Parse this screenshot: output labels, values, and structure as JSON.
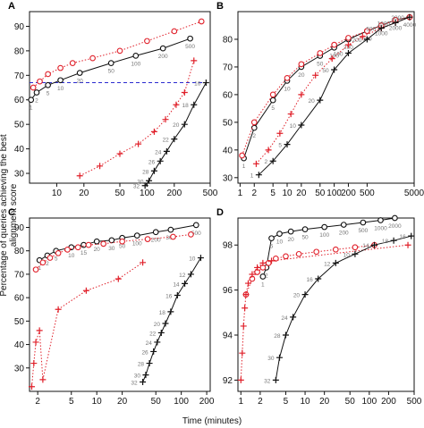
{
  "figure": {
    "ylabel": "Percentage of queries achieving the best alignment score",
    "xlabel": "Time (minutes)"
  },
  "chart_data": [
    {
      "panel": "A",
      "type": "scatter",
      "xscale": "log",
      "xlim": [
        5,
        500
      ],
      "ylim": [
        26,
        96
      ],
      "xticks": [
        10,
        20,
        50,
        100,
        200,
        500
      ],
      "yticks": [
        30,
        40,
        50,
        60,
        70,
        80,
        90
      ],
      "hline": 67,
      "series": [
        {
          "marker": "circle",
          "color": "#111111",
          "line": "solid",
          "style": "black",
          "x": [
            5.2,
            6,
            8,
            11,
            18,
            40,
            75,
            150,
            300
          ],
          "y": [
            60,
            63,
            66,
            68,
            71,
            75,
            78,
            81,
            85
          ],
          "labels": [
            "1",
            "2",
            "5",
            "10",
            "20",
            "50",
            "100",
            "200",
            "500"
          ]
        },
        {
          "marker": "circle",
          "color": "#e0202a",
          "line": "dotted",
          "style": "red",
          "x": [
            5.5,
            6.5,
            8,
            11,
            15,
            25,
            50,
            100,
            200,
            400
          ],
          "y": [
            65,
            67.5,
            70.5,
            73,
            75,
            77,
            80,
            84,
            88,
            92
          ],
          "labels": []
        },
        {
          "marker": "plus",
          "color": "#e0202a",
          "line": "dotted",
          "style": "red",
          "x": [
            18,
            30,
            50,
            80,
            120,
            160,
            210,
            260,
            330
          ],
          "y": [
            29,
            33,
            38,
            42,
            47,
            52,
            58,
            63,
            76
          ],
          "labels": []
        },
        {
          "marker": "plus",
          "color": "#111111",
          "line": "solid",
          "style": "black",
          "x": [
            95,
            105,
            120,
            140,
            165,
            200,
            260,
            330,
            450
          ],
          "y": [
            25,
            27,
            31,
            35,
            39,
            44,
            50,
            58,
            67
          ],
          "labels": [
            "32",
            "30",
            "28",
            "26",
            "24",
            "22",
            "20",
            "18",
            "16"
          ]
        }
      ]
    },
    {
      "panel": "B",
      "type": "scatter",
      "xscale": "log",
      "xlim": [
        0.9,
        5000
      ],
      "ylim": [
        28,
        90
      ],
      "xticks": [
        1,
        2,
        5,
        10,
        20,
        50,
        100,
        200,
        500,
        5000
      ],
      "yticks": [
        30,
        40,
        50,
        60,
        70,
        80
      ],
      "series": [
        {
          "marker": "circle",
          "color": "#111111",
          "line": "solid",
          "style": "black",
          "x": [
            1.2,
            2,
            5,
            10,
            20,
            50,
            100,
            200,
            500,
            1000,
            2000,
            4000
          ],
          "y": [
            37,
            48,
            58,
            65,
            70,
            74,
            77,
            80,
            83,
            85,
            87,
            88
          ],
          "labels": [
            "1",
            "2",
            "5",
            "10",
            "20",
            "50",
            "100",
            "200",
            "500",
            "1000",
            "2000",
            "4000"
          ]
        },
        {
          "marker": "circle",
          "color": "#e0202a",
          "line": "dotted",
          "style": "red",
          "x": [
            1.1,
            2,
            5,
            10,
            20,
            50,
            100,
            200,
            500,
            1000,
            2000,
            4000
          ],
          "y": [
            38,
            50,
            60,
            66,
            71,
            75,
            78,
            80.5,
            83,
            85,
            87,
            88
          ],
          "labels": []
        },
        {
          "marker": "plus",
          "color": "#e0202a",
          "line": "dotted",
          "style": "red",
          "x": [
            2.2,
            4,
            7,
            12,
            20,
            40,
            90,
            200,
            400,
            1000,
            2000,
            4000
          ],
          "y": [
            35,
            40,
            46,
            53,
            60,
            67,
            73,
            78,
            81,
            84,
            86,
            88
          ],
          "labels": []
        },
        {
          "marker": "plus",
          "color": "#111111",
          "line": "solid",
          "style": "black",
          "x": [
            2.5,
            5,
            10,
            20,
            50,
            100,
            200,
            500,
            1000,
            2000,
            4000
          ],
          "y": [
            31,
            36,
            42,
            49,
            58,
            69,
            75,
            80,
            84,
            86,
            88
          ],
          "labels": [
            "1",
            "2",
            "5",
            "10",
            "20",
            "50",
            "100",
            "200",
            "500",
            "1000",
            "2000"
          ]
        }
      ]
    },
    {
      "panel": "C",
      "type": "scatter",
      "xscale": "log",
      "xlim": [
        1.6,
        220
      ],
      "ylim": [
        20,
        94
      ],
      "xticks": [
        2,
        5,
        10,
        20,
        50,
        100,
        200
      ],
      "yticks": [
        30,
        40,
        50,
        60,
        70,
        80,
        90
      ],
      "series": [
        {
          "marker": "circle",
          "color": "#111111",
          "line": "solid",
          "style": "black",
          "x": [
            2.1,
            2.6,
            3.3,
            5,
            7,
            10,
            15,
            20,
            30,
            50,
            75,
            150
          ],
          "y": [
            76,
            78,
            80,
            81.5,
            82.5,
            84,
            84.5,
            85.5,
            86.5,
            88,
            89,
            91
          ],
          "labels": [
            "1",
            "2",
            "5",
            "10",
            "15",
            "20",
            "30",
            "50",
            "100",
            "200",
            "300",
            "500"
          ]
        },
        {
          "marker": "circle",
          "color": "#e0202a",
          "line": "dotted",
          "style": "red",
          "x": [
            1.9,
            2.3,
            2.8,
            3.5,
            4.5,
            6,
            8,
            12,
            20,
            40,
            80,
            130
          ],
          "y": [
            72,
            75,
            77,
            79,
            80.5,
            81.5,
            82.5,
            83,
            84,
            85,
            86,
            87
          ],
          "labels": []
        },
        {
          "marker": "plus",
          "color": "#e0202a",
          "line": "dotted",
          "style": "red",
          "x": [
            1.7,
            1.8,
            1.9,
            2.1,
            2.3,
            3.5,
            7.5,
            18,
            35
          ],
          "y": [
            22,
            32,
            41,
            46,
            25,
            55,
            63,
            68,
            75
          ],
          "labels": []
        },
        {
          "marker": "plus",
          "color": "#111111",
          "line": "solid",
          "style": "black",
          "x": [
            35,
            38,
            42,
            47,
            52,
            58,
            65,
            75,
            90,
            110,
            130,
            170
          ],
          "y": [
            24,
            27,
            32,
            37,
            41,
            45,
            49,
            54,
            61,
            66,
            70,
            77
          ],
          "labels": [
            "32",
            "30",
            "28",
            "26",
            "24",
            "22",
            "20",
            "18",
            "16",
            "14",
            "12",
            "10"
          ]
        }
      ]
    },
    {
      "panel": "D",
      "type": "scatter",
      "xscale": "log",
      "xlim": [
        0.9,
        500
      ],
      "ylim": [
        91.5,
        99.2
      ],
      "xticks": [
        1,
        2,
        5,
        10,
        20,
        50,
        100,
        200,
        500
      ],
      "yticks": [
        92,
        94,
        96,
        98
      ],
      "series": [
        {
          "marker": "circle",
          "color": "#111111",
          "line": "solid",
          "style": "black",
          "x": [
            2.2,
            2.5,
            3,
            4,
            6,
            10,
            20,
            40,
            80,
            150,
            250
          ],
          "y": [
            96.6,
            97,
            98.3,
            98.5,
            98.6,
            98.7,
            98.8,
            98.9,
            99.0,
            99.1,
            99.2
          ],
          "labels": [
            "1",
            "2",
            "5",
            "10",
            "20",
            "50",
            "100",
            "200",
            "500",
            "1000",
            "2000"
          ]
        },
        {
          "marker": "circle",
          "color": "#e0202a",
          "line": "dotted",
          "style": "red",
          "x": [
            1.2,
            1.5,
            1.8,
            2.2,
            2.7,
            3.5,
            5,
            8,
            15,
            30,
            60,
            120
          ],
          "y": [
            95.8,
            96.5,
            96.8,
            97.0,
            97.2,
            97.4,
            97.5,
            97.6,
            97.7,
            97.8,
            97.9,
            98.0
          ],
          "labels": []
        },
        {
          "marker": "plus",
          "color": "#e0202a",
          "line": "dotted",
          "style": "red",
          "x": [
            1.0,
            1.05,
            1.1,
            1.15,
            1.2,
            1.3,
            1.5,
            1.8,
            2.2,
            3,
            400
          ],
          "y": [
            92,
            93.2,
            94.4,
            95.2,
            95.8,
            96.3,
            96.7,
            97.0,
            97.2,
            97.3,
            98.0
          ],
          "labels": []
        },
        {
          "marker": "plus",
          "color": "#111111",
          "line": "solid",
          "style": "black",
          "x": [
            3.5,
            4,
            5,
            6.5,
            10,
            16,
            30,
            60,
            120,
            240,
            450
          ],
          "y": [
            92,
            93,
            94,
            94.8,
            95.8,
            96.5,
            97.2,
            97.6,
            98.0,
            98.2,
            98.4
          ],
          "labels": [
            "32",
            "30",
            "28",
            "24",
            "20",
            "16",
            "12",
            "10",
            "14",
            "18",
            "16"
          ]
        }
      ]
    }
  ]
}
